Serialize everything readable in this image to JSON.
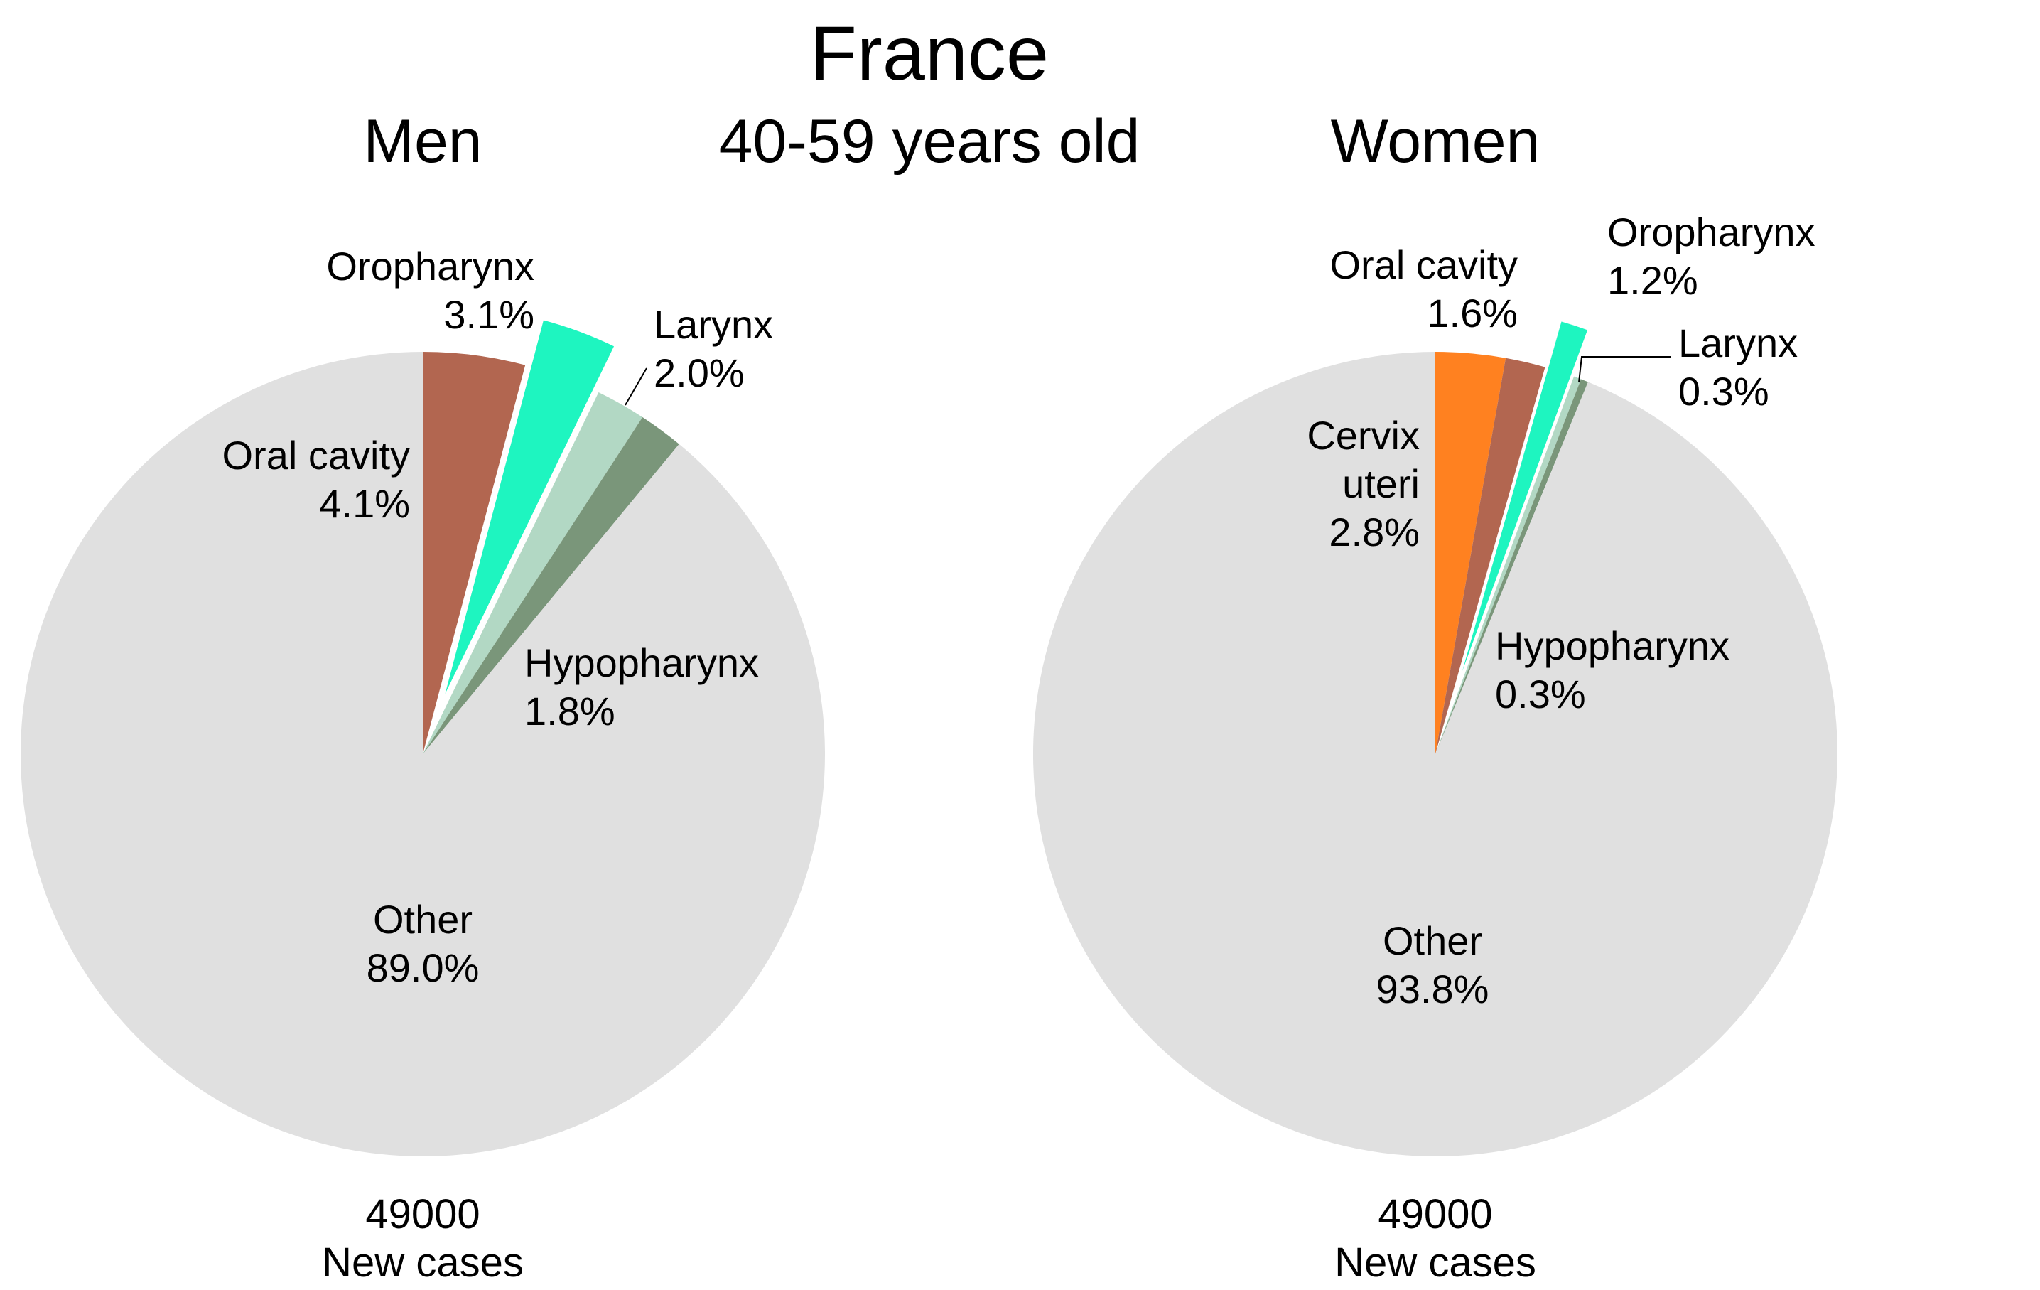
{
  "title": "France",
  "subtitle": "40-59 years old",
  "chart_data": [
    {
      "type": "pie",
      "title": "Men",
      "total_label": "49000",
      "total_caption": "New cases",
      "slices": [
        {
          "name": "Oral cavity",
          "value": 4.1,
          "value_label": "4.1%",
          "color": "#b26650",
          "exploded": false
        },
        {
          "name": "Oropharynx",
          "value": 3.1,
          "value_label": "3.1%",
          "color": "#1ef5c0",
          "exploded": true
        },
        {
          "name": "Larynx",
          "value": 2.0,
          "value_label": "2.0%",
          "color": "#b2d8c4",
          "exploded": false
        },
        {
          "name": "Hypopharynx",
          "value": 1.8,
          "value_label": "1.8%",
          "color": "#7a967a",
          "exploded": false
        },
        {
          "name": "Other",
          "value": 89.0,
          "value_label": "89.0%",
          "color": "#e0e0e0",
          "exploded": false
        }
      ]
    },
    {
      "type": "pie",
      "title": "Women",
      "total_label": "49000",
      "total_caption": "New cases",
      "slices": [
        {
          "name": "Cervix uteri",
          "value": 2.8,
          "value_label": "2.8%",
          "color": "#ff8120",
          "exploded": false
        },
        {
          "name": "Oral cavity",
          "value": 1.6,
          "value_label": "1.6%",
          "color": "#b26650",
          "exploded": false
        },
        {
          "name": "Oropharynx",
          "value": 1.2,
          "value_label": "1.2%",
          "color": "#1ef5c0",
          "exploded": true
        },
        {
          "name": "Larynx",
          "value": 0.3,
          "value_label": "0.3%",
          "color": "#b2d8c4",
          "exploded": false
        },
        {
          "name": "Hypopharynx",
          "value": 0.3,
          "value_label": "0.3%",
          "color": "#7a967a",
          "exploded": false
        },
        {
          "name": "Other",
          "value": 93.8,
          "value_label": "93.8%",
          "color": "#e0e0e0",
          "exploded": false
        }
      ]
    }
  ]
}
